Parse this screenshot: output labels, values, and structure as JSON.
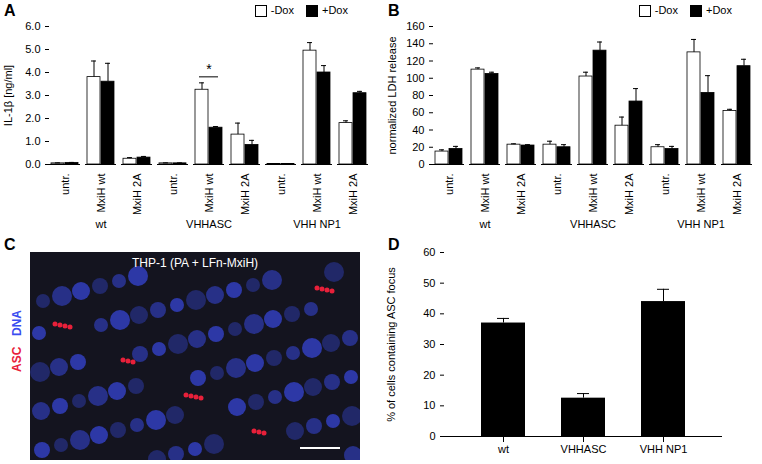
{
  "chart_data": [
    {
      "type": "bar",
      "panel": "A",
      "y_label": "IL-1β [ng/ml]",
      "groups": [
        "wt",
        "VHHASC",
        "VHH NP1"
      ],
      "categories": [
        "untr.",
        "MxiH wt",
        "MxiH 2A"
      ],
      "series": [
        {
          "name": "-Dox",
          "color": "#ffffff",
          "values": [
            [
              0.05,
              3.8,
              0.25
            ],
            [
              0.05,
              3.25,
              1.3
            ],
            [
              0.02,
              4.95,
              1.8
            ]
          ],
          "errors": [
            [
              0.02,
              0.7,
              0.05
            ],
            [
              0.02,
              0.3,
              0.5
            ],
            [
              0.01,
              0.35,
              0.1
            ]
          ]
        },
        {
          "name": "+Dox",
          "color": "#000000",
          "values": [
            [
              0.07,
              3.6,
              0.3
            ],
            [
              0.05,
              1.6,
              0.85
            ],
            [
              0.02,
              4.0,
              3.1
            ]
          ],
          "errors": [
            [
              0.02,
              0.8,
              0.05
            ],
            [
              0.02,
              0.05,
              0.2
            ],
            [
              0.01,
              0.3,
              0.08
            ]
          ]
        }
      ],
      "ylim": [
        0,
        6
      ],
      "yticks": [
        0,
        1,
        2,
        3,
        4,
        5,
        6
      ],
      "annotations": [
        {
          "text": "*",
          "group": "VHHASC",
          "category": "MxiH wt"
        }
      ]
    },
    {
      "type": "bar",
      "panel": "B",
      "y_label": "normalized LDH release",
      "groups": [
        "wt",
        "VHHASC",
        "VHH NP1"
      ],
      "categories": [
        "untr.",
        "MxiH wt",
        "MxiH 2A"
      ],
      "series": [
        {
          "name": "-Dox",
          "color": "#ffffff",
          "values": [
            [
              15,
              110,
              23
            ],
            [
              23,
              102,
              45
            ],
            [
              20,
              130,
              62
            ]
          ],
          "errors": [
            [
              2,
              2,
              1
            ],
            [
              4,
              5,
              10
            ],
            [
              3,
              15,
              2
            ]
          ]
        },
        {
          "name": "+Dox",
          "color": "#000000",
          "values": [
            [
              18,
              105,
              22
            ],
            [
              20,
              132,
              73
            ],
            [
              18,
              83,
              114
            ]
          ],
          "errors": [
            [
              3,
              2,
              1
            ],
            [
              3,
              10,
              15
            ],
            [
              3,
              20,
              8
            ]
          ]
        }
      ],
      "ylim": [
        0,
        160
      ],
      "yticks": [
        0,
        20,
        40,
        60,
        80,
        100,
        120,
        140,
        160
      ]
    },
    {
      "type": "image",
      "panel": "C",
      "title": "THP-1 (PA + LFn-MxiH)",
      "channels": [
        {
          "name": "ASC",
          "color": "#e8203a"
        },
        {
          "name": "DNA",
          "color": "#3a4cf0"
        }
      ]
    },
    {
      "type": "bar",
      "panel": "D",
      "y_label": "% of cells containing ASC focus",
      "categories": [
        "wt",
        "VHHASC",
        "VHH NP1"
      ],
      "values": [
        37,
        12.5,
        44
      ],
      "errors": [
        1.5,
        1.5,
        4
      ],
      "color": "#000000",
      "ylim": [
        0,
        60
      ],
      "yticks": [
        0,
        10,
        20,
        30,
        40,
        50,
        60
      ]
    }
  ]
}
